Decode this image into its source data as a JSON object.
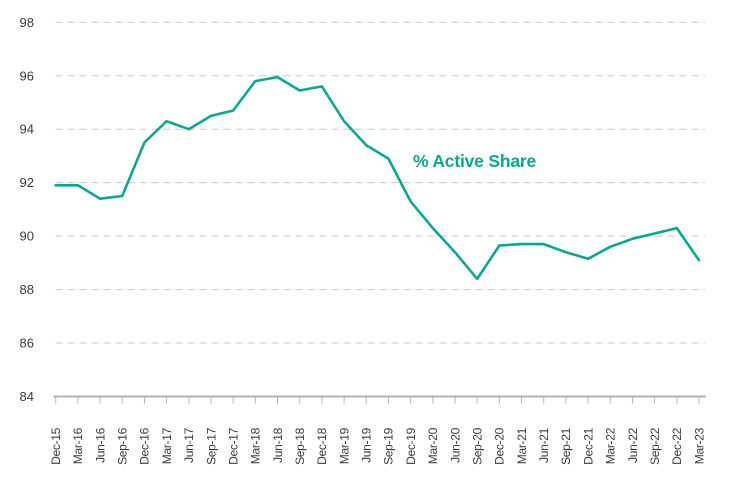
{
  "chart_data": {
    "type": "line",
    "title": "",
    "annotation": "% Active Share",
    "legend_position": "inline-annotation",
    "grid": "horizontal-dashed",
    "categories": [
      "Dec-15",
      "Mar-16",
      "Jun-16",
      "Sep-16",
      "Dec-16",
      "Mar-17",
      "Jun-17",
      "Sep-17",
      "Dec-17",
      "Mar-18",
      "Jun-18",
      "Sep-18",
      "Dec-18",
      "Mar-19",
      "Jun-19",
      "Sep-19",
      "Dec-19",
      "Mar-20",
      "Jun-20",
      "Sep-20",
      "Dec-20",
      "Mar-21",
      "Jun-21",
      "Sep-21",
      "Dec-21",
      "Mar-22",
      "Jun-22",
      "Sep-22",
      "Dec-22",
      "Mar-23"
    ],
    "series": [
      {
        "name": "% Active Share",
        "values": [
          91.9,
          91.9,
          91.4,
          91.5,
          93.5,
          94.3,
          94.0,
          94.5,
          94.7,
          95.8,
          95.95,
          95.45,
          95.6,
          94.3,
          93.4,
          92.9,
          91.3,
          90.3,
          89.4,
          88.4,
          89.65,
          89.7,
          89.7,
          89.4,
          89.15,
          89.6,
          89.9,
          90.1,
          90.3,
          89.1
        ]
      }
    ],
    "xlabel": "",
    "ylabel": "",
    "ylim": [
      84,
      98
    ],
    "yticks": [
      84,
      86,
      88,
      90,
      92,
      94,
      96,
      98
    ],
    "colors": {
      "line": "#0aa78e",
      "annotation_text": "#0aa78e",
      "axis_text": "#3c3c3c",
      "gridline": "#c9c9c9",
      "axis_line": "#b3b3b3"
    }
  }
}
